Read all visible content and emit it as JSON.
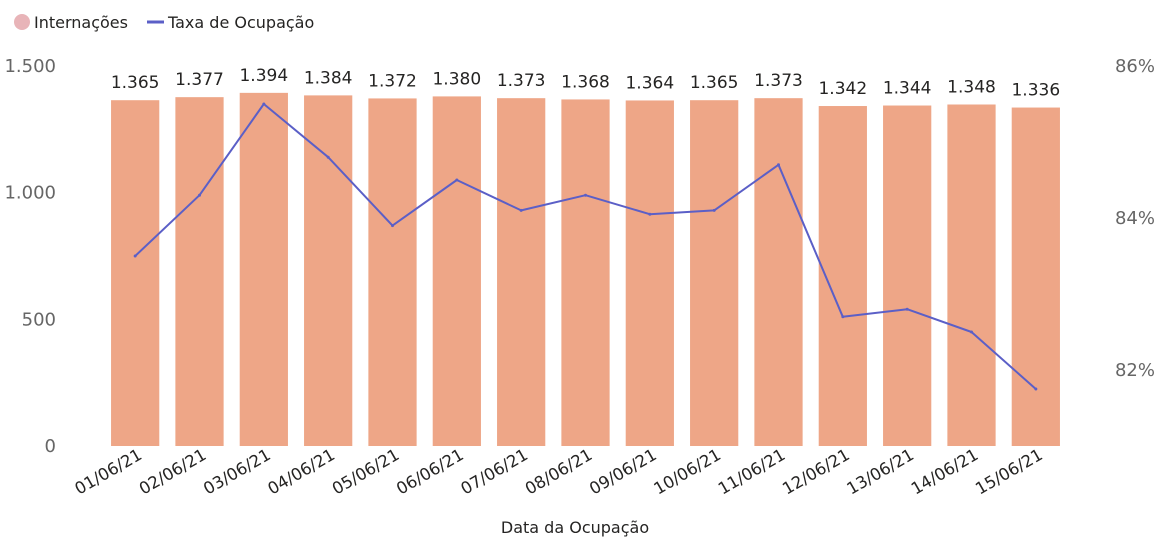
{
  "chart_data": {
    "type": "bar",
    "title": "",
    "xlabel": "Data da Ocupação",
    "ylabel": "",
    "categories": [
      "01/06/21",
      "02/06/21",
      "03/06/21",
      "04/06/21",
      "05/06/21",
      "06/06/21",
      "07/06/21",
      "08/06/21",
      "09/06/21",
      "10/06/21",
      "11/06/21",
      "12/06/21",
      "13/06/21",
      "14/06/21",
      "15/06/21"
    ],
    "series": [
      {
        "name": "Internações",
        "type": "bar",
        "axis": "left",
        "color": "#eea687",
        "values": [
          1365,
          1377,
          1394,
          1384,
          1372,
          1380,
          1373,
          1368,
          1364,
          1365,
          1373,
          1342,
          1344,
          1348,
          1336
        ],
        "labels": [
          "1.365",
          "1.377",
          "1.394",
          "1.384",
          "1.372",
          "1.380",
          "1.373",
          "1.368",
          "1.364",
          "1.365",
          "1.373",
          "1.342",
          "1.344",
          "1.348",
          "1.336"
        ]
      },
      {
        "name": "Taxa de Ocupação",
        "type": "line",
        "axis": "right",
        "color": "#5b5fc7",
        "values": [
          83.5,
          84.3,
          85.5,
          84.8,
          83.9,
          84.5,
          84.1,
          84.3,
          84.05,
          84.1,
          84.7,
          82.7,
          82.8,
          82.5,
          81.75
        ]
      }
    ],
    "y_left": {
      "ylim": [
        0,
        1500
      ],
      "ticks": [
        0,
        500,
        1000,
        1500
      ],
      "tick_labels": [
        "0",
        "500",
        "1.000",
        "1.500"
      ]
    },
    "y_right": {
      "ylim": [
        81.0,
        86.0
      ],
      "ticks": [
        82,
        84,
        86
      ],
      "tick_labels": [
        "82%",
        "84%",
        "86%"
      ]
    },
    "grid": false,
    "legend": {
      "position": "top-left",
      "entries": [
        "Internações",
        "Taxa de Ocupação"
      ]
    }
  }
}
